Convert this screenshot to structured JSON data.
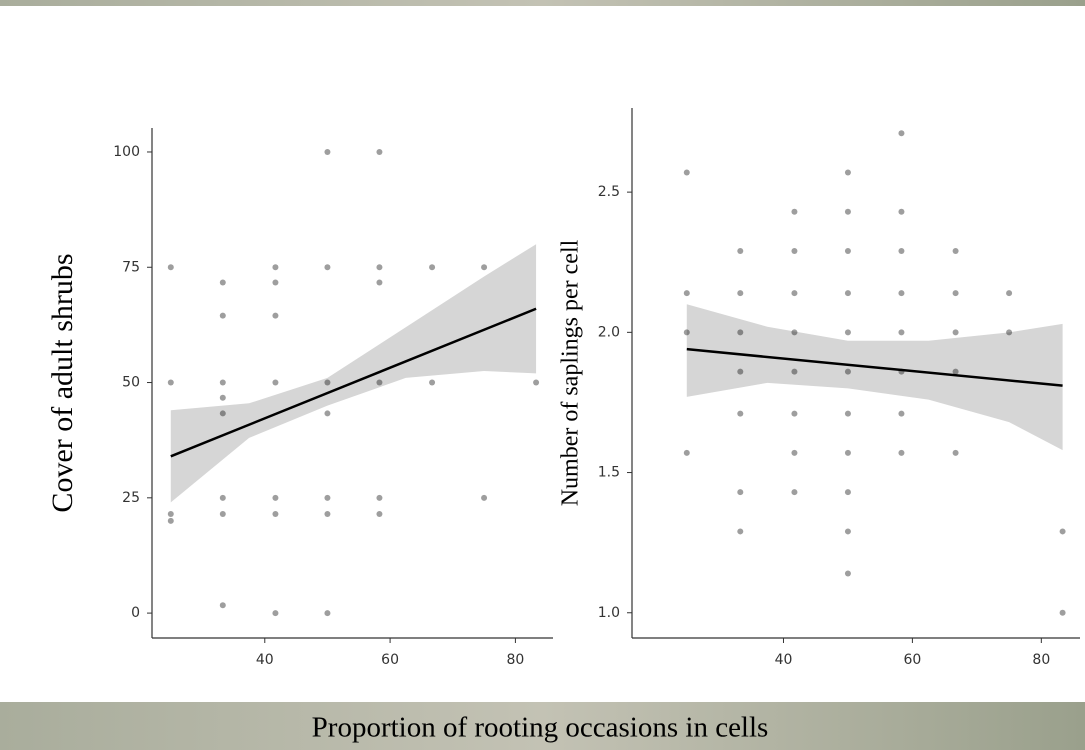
{
  "xlabel": "Proportion of  rooting occasions in cells",
  "chart_data": [
    {
      "type": "scatter",
      "ylabel": "Cover of adult shrubs",
      "color": "rgba(0,0,0,0.38)",
      "line_color": "#000000",
      "band_color": "#d6d6d6",
      "xlim": [
        22,
        86
      ],
      "ylim": [
        -5.4,
        105.2
      ],
      "xticks": [
        40,
        60,
        80
      ],
      "yticks": [
        0,
        25,
        50,
        75,
        100
      ],
      "x": [
        25,
        25,
        25,
        25,
        33.3,
        33.3,
        33.3,
        33.3,
        33.3,
        33.3,
        33.3,
        33.3,
        41.7,
        41.7,
        41.7,
        41.7,
        41.7,
        41.7,
        41.7,
        50,
        50,
        50,
        50,
        50,
        50,
        50,
        58.3,
        58.3,
        58.3,
        58.3,
        58.3,
        58.3,
        66.7,
        66.7,
        75,
        75,
        83.3
      ],
      "y": [
        75,
        50,
        21.5,
        20,
        71.7,
        64.5,
        50,
        46.7,
        43.3,
        25,
        21.5,
        1.7,
        75,
        71.7,
        64.5,
        50,
        25,
        21.5,
        0,
        100,
        75,
        50,
        43.3,
        25,
        21.5,
        0,
        100,
        75,
        71.7,
        50,
        25,
        21.5,
        75,
        50,
        75,
        25,
        50
      ],
      "fit": {
        "x": [
          25,
          83.3
        ],
        "y": [
          34,
          66
        ]
      },
      "band": {
        "x": [
          25,
          37.5,
          50,
          62.5,
          75,
          83.3
        ],
        "lower": [
          24,
          38,
          45,
          51,
          52.5,
          52
        ],
        "upper": [
          44,
          45.5,
          51,
          62,
          73,
          80
        ]
      }
    },
    {
      "type": "scatter",
      "ylabel": "Number of saplings per cell",
      "color": "rgba(0,0,0,0.38)",
      "line_color": "#000000",
      "band_color": "#d6d6d6",
      "xlim": [
        16.5,
        86
      ],
      "ylim": [
        0.91,
        2.8
      ],
      "xticks": [
        40,
        60,
        80
      ],
      "yticks": [
        {
          "value": 1,
          "label": "1.0"
        },
        1.5,
        {
          "value": 2,
          "label": "2.0"
        },
        2.5
      ],
      "x": [
        25,
        25,
        25,
        25,
        33.3,
        33.3,
        33.3,
        33.3,
        33.3,
        33.3,
        33.3,
        41.7,
        41.7,
        41.7,
        41.7,
        41.7,
        41.7,
        41.7,
        41.7,
        50,
        50,
        50,
        50,
        50,
        50,
        50,
        50,
        50,
        50,
        50,
        58.3,
        58.3,
        58.3,
        58.3,
        58.3,
        58.3,
        58.3,
        58.3,
        66.7,
        66.7,
        66.7,
        66.7,
        66.7,
        75,
        75,
        83.3,
        83.3
      ],
      "y": [
        2.57,
        2.14,
        2.0,
        1.57,
        2.29,
        2.14,
        2.0,
        1.86,
        1.71,
        1.43,
        1.29,
        2.43,
        2.29,
        2.14,
        2.0,
        1.86,
        1.71,
        1.57,
        1.43,
        2.57,
        2.43,
        2.29,
        2.14,
        2.0,
        1.86,
        1.71,
        1.57,
        1.43,
        1.29,
        1.14,
        2.71,
        2.43,
        2.29,
        2.14,
        2.0,
        1.86,
        1.71,
        1.57,
        2.29,
        2.14,
        2.0,
        1.86,
        1.57,
        2.14,
        2.0,
        1.29,
        1.0
      ],
      "fit": {
        "x": [
          25,
          83.3
        ],
        "y": [
          1.94,
          1.81
        ]
      },
      "band": {
        "x": [
          25,
          37.5,
          50,
          62.5,
          75,
          83.3
        ],
        "lower": [
          1.77,
          1.82,
          1.8,
          1.76,
          1.68,
          1.58
        ],
        "upper": [
          2.1,
          2.02,
          1.97,
          1.97,
          2.0,
          2.03
        ]
      }
    }
  ]
}
